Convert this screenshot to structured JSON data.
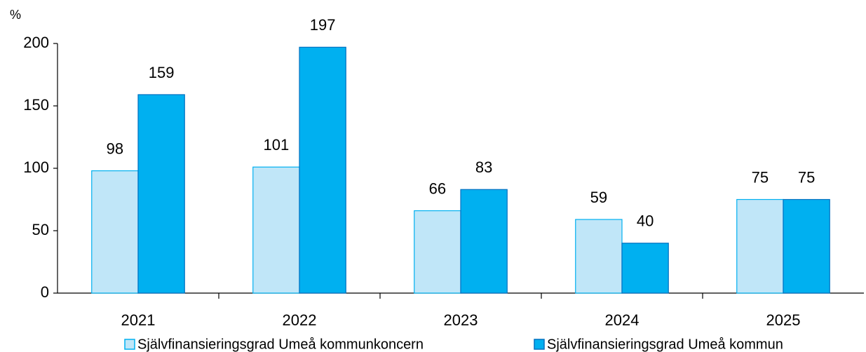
{
  "chart_data": {
    "type": "bar",
    "y_label": "%",
    "categories": [
      "2021",
      "2022",
      "2023",
      "2024",
      "2025"
    ],
    "series": [
      {
        "name": "Självfinansieringsgrad Umeå kommunkoncern",
        "color": "#c0e6f8",
        "values": [
          98,
          101,
          66,
          59,
          75
        ]
      },
      {
        "name": "Självfinansieringsgrad Umeå kommun",
        "color": "#00b0f0",
        "values": [
          159,
          197,
          83,
          40,
          75
        ]
      }
    ],
    "ylim": [
      0,
      200
    ],
    "yticks": [
      0,
      50,
      100,
      150,
      200
    ],
    "grid": false,
    "legend": "bottom"
  }
}
